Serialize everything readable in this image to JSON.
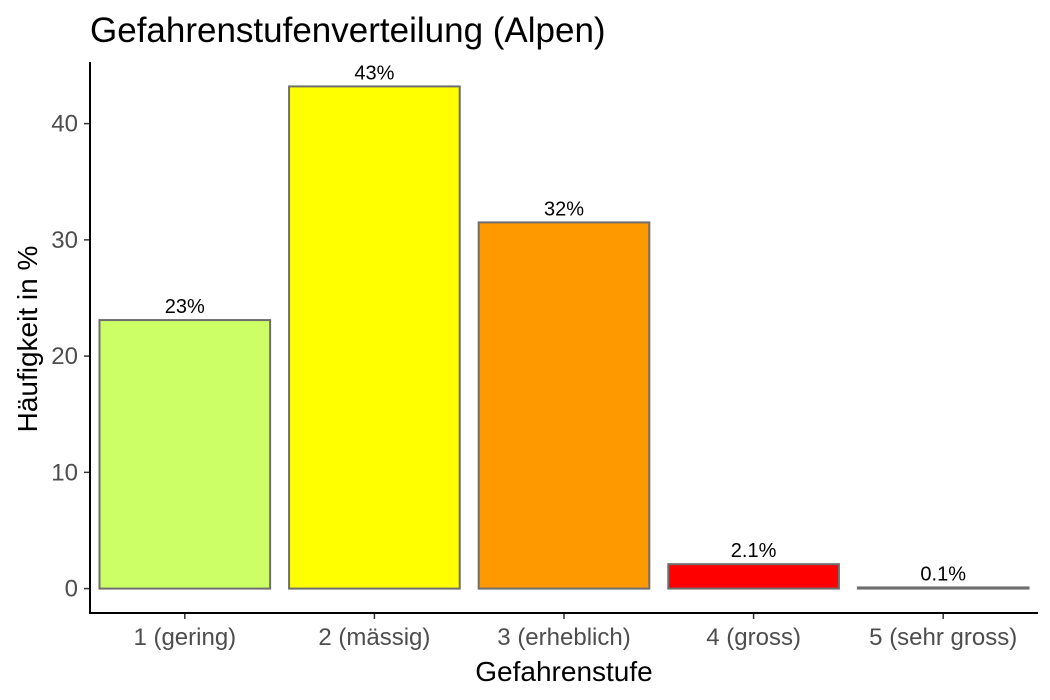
{
  "chart_data": {
    "type": "bar",
    "title": "Gefahrenstufenverteilung (Alpen)",
    "xlabel": "Gefahrenstufe",
    "ylabel": "Häufigkeit in %",
    "categories": [
      "1 (gering)",
      "2 (mässig)",
      "3 (erheblich)",
      "4 (gross)",
      "5 (sehr gross)"
    ],
    "values": [
      23.1,
      43.2,
      31.5,
      2.1,
      0.1
    ],
    "data_labels": [
      "23%",
      "43%",
      "32%",
      "2.1%",
      "0.1%"
    ],
    "colors": [
      "#ccff66",
      "#ffff00",
      "#ff9900",
      "#ff0000",
      "#cc0099"
    ],
    "ylim": [
      -2.1,
      45.3
    ],
    "yticks": [
      0,
      10,
      20,
      30,
      40
    ],
    "grid": false,
    "legend": "none"
  }
}
